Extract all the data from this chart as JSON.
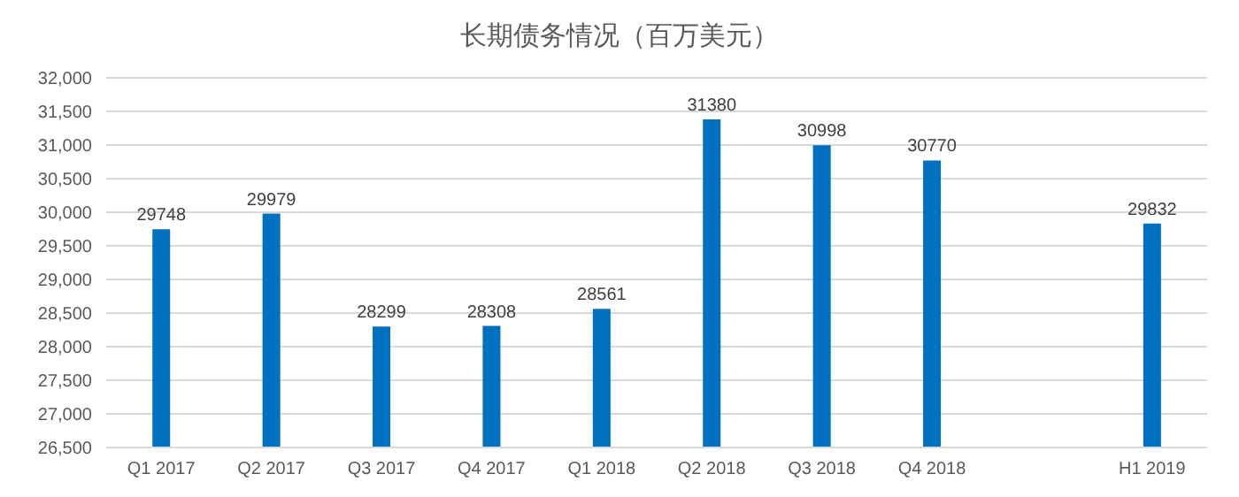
{
  "chart_data": {
    "type": "bar",
    "title": "长期债务情况（百万美元）",
    "categories": [
      "Q1 2017",
      "Q2 2017",
      "Q3 2017",
      "Q4 2017",
      "Q1 2018",
      "Q2 2018",
      "Q3 2018",
      "Q4 2018",
      null,
      "H1 2019"
    ],
    "values": [
      29748,
      29979,
      28299,
      28308,
      28561,
      31380,
      30998,
      30770,
      null,
      29832
    ],
    "color": "#0070c0",
    "ylim": [
      26500,
      32000
    ],
    "yticks": [
      {
        "value": 26500,
        "label": "26,500"
      },
      {
        "value": 27000,
        "label": "27,000"
      },
      {
        "value": 27500,
        "label": "27,500"
      },
      {
        "value": 28000,
        "label": "28,000"
      },
      {
        "value": 28500,
        "label": "28,500"
      },
      {
        "value": 29000,
        "label": "29,000"
      },
      {
        "value": 29500,
        "label": "29,500"
      },
      {
        "value": 30000,
        "label": "30,000"
      },
      {
        "value": 30500,
        "label": "30,500"
      },
      {
        "value": 31000,
        "label": "31,000"
      },
      {
        "value": 31500,
        "label": "31,500"
      },
      {
        "value": 32000,
        "label": "32,000"
      }
    ],
    "grid": "y",
    "data_labels": true
  }
}
